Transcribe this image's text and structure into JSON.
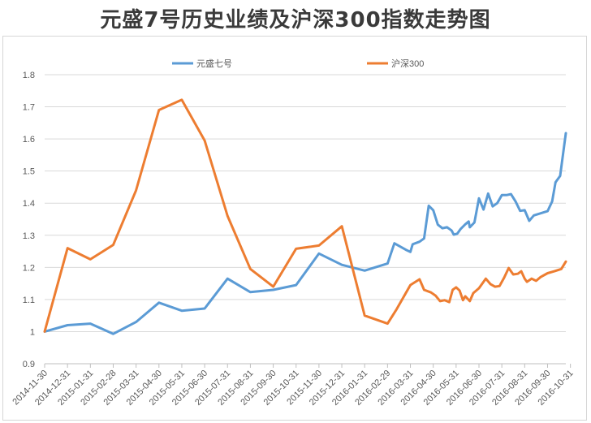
{
  "title": "元盛7号历史业绩及沪深300指数走势图",
  "legend": [
    "元盛七号",
    "沪深300"
  ],
  "colors": {
    "series_1": "#5b9bd5",
    "series_2": "#ed7d31",
    "grid": "#d9d9d9",
    "axis": "#bfbfbf"
  },
  "chart_data": {
    "type": "line",
    "title": "元盛7号历史业绩及沪深300指数走势图",
    "xlabel": "",
    "ylabel": "",
    "ylim": [
      0.9,
      1.8
    ],
    "yticks": [
      "0.9",
      "1",
      "1.1",
      "1.2",
      "1.3",
      "1.4",
      "1.5",
      "1.6",
      "1.7",
      "1.8"
    ],
    "grid": true,
    "legend_position": "top",
    "x_categories": [
      "2014-11-30",
      "2014-12-31",
      "2015-01-31",
      "2015-02-28",
      "2015-03-31",
      "2015-04-30",
      "2015-05-31",
      "2015-06-30",
      "2015-07-31",
      "2015-08-31",
      "2015-09-30",
      "2015-10-31",
      "2015-11-30",
      "2015-12-31",
      "2016-01-31",
      "2016-02-29",
      "2016-03-31",
      "2016-04-30",
      "2016-05-31",
      "2016-06-30",
      "2016-07-31",
      "2016-08-31",
      "2016-09-30",
      "2016-10-31"
    ],
    "series": [
      {
        "name": "元盛七号",
        "points": [
          [
            0,
            1.0
          ],
          [
            1,
            1.02
          ],
          [
            2,
            1.025
          ],
          [
            3,
            0.993
          ],
          [
            4,
            1.03
          ],
          [
            5,
            1.09
          ],
          [
            6,
            1.065
          ],
          [
            7,
            1.072
          ],
          [
            8,
            1.165
          ],
          [
            9,
            1.123
          ],
          [
            10,
            1.13
          ],
          [
            11,
            1.145
          ],
          [
            12,
            1.243
          ],
          [
            13,
            1.208
          ],
          [
            14,
            1.19
          ],
          [
            15,
            1.212
          ],
          [
            15.3,
            1.275
          ],
          [
            15.8,
            1.255
          ],
          [
            16.0,
            1.248
          ],
          [
            16.1,
            1.272
          ],
          [
            16.4,
            1.28
          ],
          [
            16.6,
            1.29
          ],
          [
            16.8,
            1.392
          ],
          [
            17.0,
            1.378
          ],
          [
            17.2,
            1.333
          ],
          [
            17.4,
            1.322
          ],
          [
            17.6,
            1.325
          ],
          [
            17.8,
            1.315
          ],
          [
            17.9,
            1.302
          ],
          [
            18.05,
            1.305
          ],
          [
            18.2,
            1.32
          ],
          [
            18.4,
            1.334
          ],
          [
            18.55,
            1.343
          ],
          [
            18.6,
            1.325
          ],
          [
            18.8,
            1.34
          ],
          [
            19.0,
            1.415
          ],
          [
            19.2,
            1.38
          ],
          [
            19.4,
            1.43
          ],
          [
            19.6,
            1.39
          ],
          [
            19.8,
            1.4
          ],
          [
            20.0,
            1.425
          ],
          [
            20.2,
            1.425
          ],
          [
            20.4,
            1.428
          ],
          [
            20.6,
            1.405
          ],
          [
            20.8,
            1.376
          ],
          [
            21.0,
            1.378
          ],
          [
            21.2,
            1.345
          ],
          [
            21.4,
            1.362
          ],
          [
            22.0,
            1.375
          ],
          [
            22.2,
            1.405
          ],
          [
            22.35,
            1.465
          ],
          [
            22.55,
            1.485
          ],
          [
            22.8,
            1.618
          ]
        ]
      },
      {
        "name": "沪深300",
        "points": [
          [
            0,
            1.0
          ],
          [
            1,
            1.26
          ],
          [
            2,
            1.225
          ],
          [
            3,
            1.27
          ],
          [
            4,
            1.44
          ],
          [
            5,
            1.69
          ],
          [
            6,
            1.722
          ],
          [
            7,
            1.595
          ],
          [
            8,
            1.36
          ],
          [
            9,
            1.195
          ],
          [
            10,
            1.14
          ],
          [
            11,
            1.258
          ],
          [
            12,
            1.268
          ],
          [
            13,
            1.328
          ],
          [
            14,
            1.05
          ],
          [
            15,
            1.025
          ],
          [
            15.4,
            1.07
          ],
          [
            16.0,
            1.145
          ],
          [
            16.4,
            1.163
          ],
          [
            16.6,
            1.13
          ],
          [
            16.9,
            1.122
          ],
          [
            17.1,
            1.112
          ],
          [
            17.3,
            1.095
          ],
          [
            17.5,
            1.098
          ],
          [
            17.7,
            1.092
          ],
          [
            17.85,
            1.13
          ],
          [
            18.0,
            1.138
          ],
          [
            18.15,
            1.128
          ],
          [
            18.3,
            1.098
          ],
          [
            18.4,
            1.11
          ],
          [
            18.6,
            1.095
          ],
          [
            18.75,
            1.12
          ],
          [
            19.0,
            1.135
          ],
          [
            19.3,
            1.165
          ],
          [
            19.5,
            1.148
          ],
          [
            19.7,
            1.14
          ],
          [
            19.9,
            1.142
          ],
          [
            20.1,
            1.168
          ],
          [
            20.3,
            1.198
          ],
          [
            20.5,
            1.178
          ],
          [
            20.7,
            1.18
          ],
          [
            20.85,
            1.188
          ],
          [
            21.0,
            1.165
          ],
          [
            21.1,
            1.155
          ],
          [
            21.3,
            1.165
          ],
          [
            21.5,
            1.158
          ],
          [
            21.7,
            1.17
          ],
          [
            22.0,
            1.182
          ],
          [
            22.3,
            1.188
          ],
          [
            22.6,
            1.195
          ],
          [
            22.8,
            1.218
          ]
        ]
      }
    ]
  }
}
